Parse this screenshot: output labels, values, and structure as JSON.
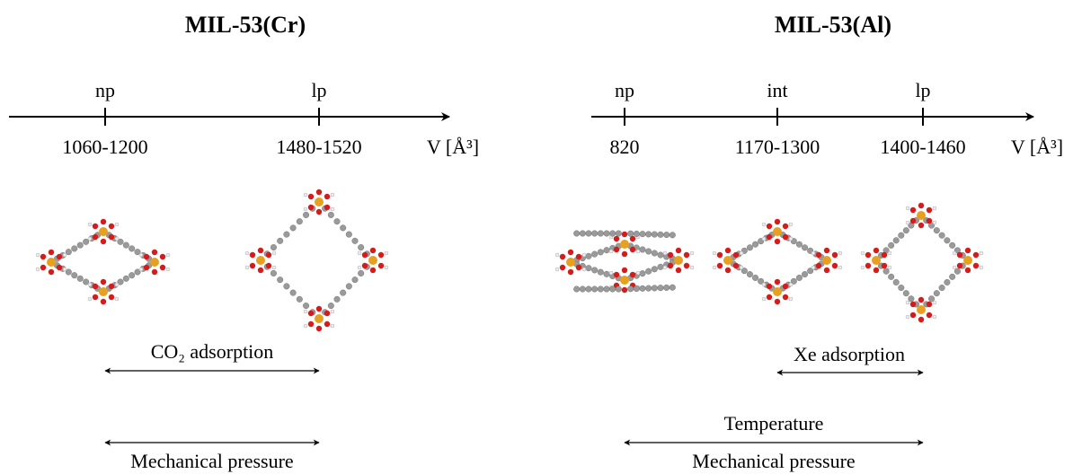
{
  "panels": [
    {
      "title": "MIL-53(Cr)",
      "axis_label": "V [Å³]",
      "phases": [
        {
          "name": "np",
          "volume": "1060-1200"
        },
        {
          "name": "lp",
          "volume": "1480-1520"
        }
      ],
      "transitions": [
        {
          "label": "CO₂ adsorption"
        },
        {
          "label": "Mechanical pressure"
        }
      ]
    },
    {
      "title": "MIL-53(Al)",
      "axis_label": "V [Å³]",
      "phases": [
        {
          "name": "np",
          "volume": "820"
        },
        {
          "name": "int",
          "volume": "1170-1300"
        },
        {
          "name": "lp",
          "volume": "1400-1460"
        }
      ],
      "transitions": [
        {
          "label": "Xe adsorption"
        },
        {
          "label": "Temperature"
        },
        {
          "label": "Mechanical pressure"
        }
      ]
    }
  ]
}
